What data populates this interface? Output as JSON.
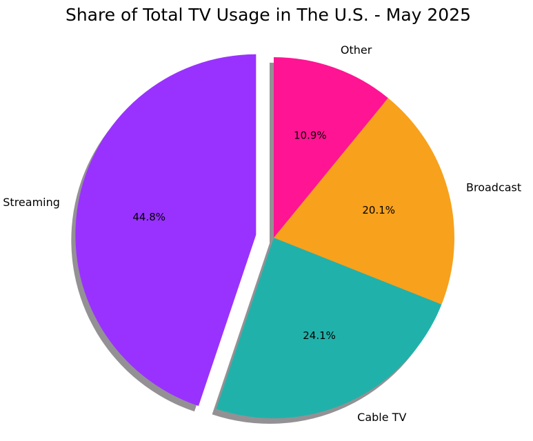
{
  "chart_data": {
    "type": "pie",
    "title": "Share of Total TV Usage in The U.S. - May 2025",
    "labels": [
      "Other",
      "Broadcast",
      "Cable TV",
      "Streaming"
    ],
    "values": [
      10.9,
      20.1,
      24.1,
      44.8
    ],
    "value_labels": [
      "10.9%",
      "20.1%",
      "24.1%",
      "44.8%"
    ],
    "colors": [
      "#ff1493",
      "#f8a11c",
      "#20b2aa",
      "#9932ff"
    ],
    "exploded": [
      "Streaming"
    ],
    "shadow": true,
    "start": "top",
    "direction": "clockwise"
  }
}
